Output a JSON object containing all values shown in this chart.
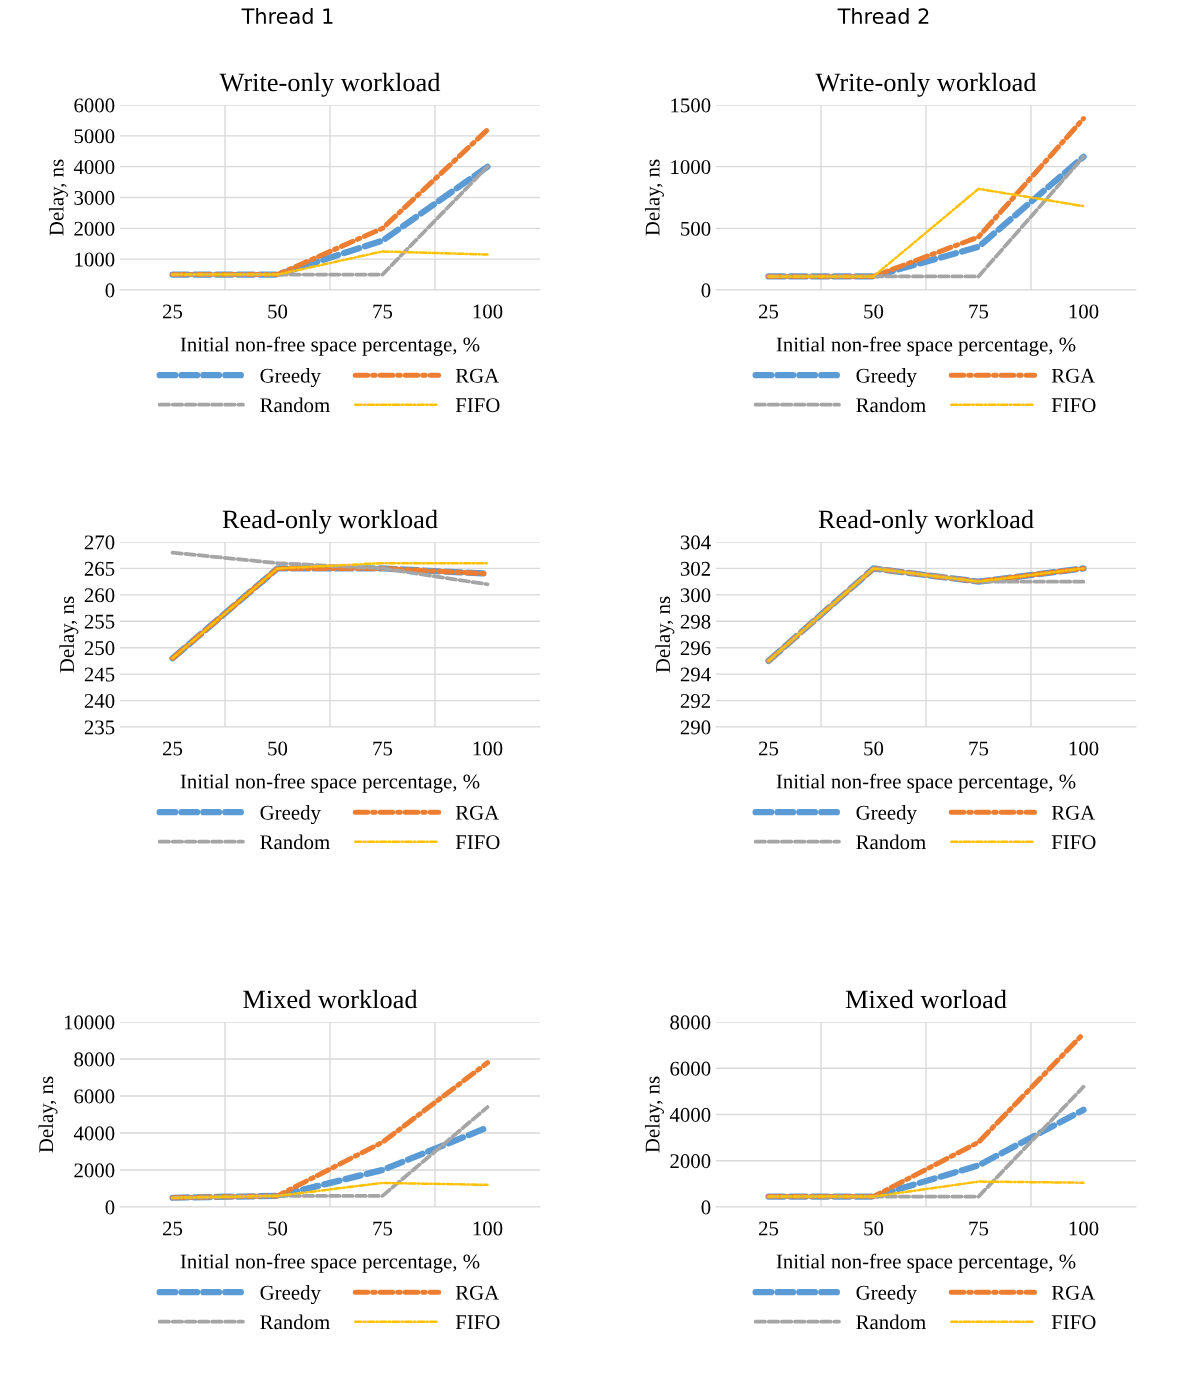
{
  "chart_data": [
    {
      "type": "line",
      "title": "Write-only workload",
      "annotations": [
        "Thread 1"
      ],
      "xlabel": "Initial non-free space percentage, %",
      "ylabel": "Delay, ns",
      "categories": [
        "25",
        "50",
        "75",
        "100"
      ],
      "ylim": [
        0,
        6000
      ],
      "yticks": [
        0,
        1000,
        2000,
        3000,
        4000,
        5000,
        6000
      ],
      "grid": true,
      "legend": "bottom",
      "marker": "none",
      "series": [
        {
          "name": "Greedy",
          "color": "#5b9bd5",
          "line_style": "dashed",
          "values": [
            500,
            500,
            1600,
            4000
          ]
        },
        {
          "name": "RGA",
          "color": "#ed7d31",
          "line_style": "dashdot",
          "values": [
            500,
            500,
            2000,
            5200
          ]
        },
        {
          "name": "Random",
          "color": "#a5a5a5",
          "line_style": "dashed",
          "values": [
            500,
            500,
            500,
            4000
          ]
        },
        {
          "name": "FIFO",
          "color": "#ffc000",
          "line_style": "dashdot",
          "values": [
            500,
            500,
            1250,
            1150
          ]
        }
      ]
    },
    {
      "type": "line",
      "title": "Write-only workload",
      "annotations": [
        "Thread 2"
      ],
      "xlabel": "Initial non-free space percentage, %",
      "ylabel": "Delay, ns",
      "categories": [
        "25",
        "50",
        "75",
        "100"
      ],
      "ylim": [
        0,
        1500
      ],
      "yticks": [
        0,
        500,
        1000,
        1500
      ],
      "grid": true,
      "legend": "bottom",
      "marker": "none",
      "series": [
        {
          "name": "Greedy",
          "color": "#5b9bd5",
          "line_style": "dashed",
          "values": [
            110,
            110,
            350,
            1080
          ]
        },
        {
          "name": "RGA",
          "color": "#ed7d31",
          "line_style": "dashdot",
          "values": [
            110,
            110,
            430,
            1390
          ]
        },
        {
          "name": "Random",
          "color": "#a5a5a5",
          "line_style": "dashed",
          "values": [
            110,
            110,
            110,
            1080
          ]
        },
        {
          "name": "FIFO",
          "color": "#ffc000",
          "line_style": "dashdot",
          "values": [
            110,
            110,
            820,
            680
          ]
        }
      ]
    },
    {
      "type": "line",
      "title": "Read-only workload",
      "xlabel": "Initial non-free space percentage, %",
      "ylabel": "Delay, ns",
      "categories": [
        "25",
        "50",
        "75",
        "100"
      ],
      "ylim": [
        235,
        270
      ],
      "yticks": [
        235,
        240,
        245,
        250,
        255,
        260,
        265,
        270
      ],
      "grid": true,
      "legend": "bottom",
      "marker": "none",
      "series": [
        {
          "name": "Greedy",
          "color": "#5b9bd5",
          "line_style": "dashed",
          "values": [
            248,
            265,
            265,
            264
          ]
        },
        {
          "name": "RGA",
          "color": "#ed7d31",
          "line_style": "dashdot",
          "values": [
            248,
            265,
            265,
            264
          ]
        },
        {
          "name": "Random",
          "color": "#a5a5a5",
          "line_style": "dashed",
          "values": [
            268,
            266,
            265,
            262
          ]
        },
        {
          "name": "FIFO",
          "color": "#ffc000",
          "line_style": "dashdot",
          "values": [
            248,
            265,
            266,
            266
          ]
        }
      ]
    },
    {
      "type": "line",
      "title": "Read-only workload",
      "xlabel": "Initial non-free space percentage, %",
      "ylabel": "Delay, ns",
      "categories": [
        "25",
        "50",
        "75",
        "100"
      ],
      "ylim": [
        290,
        304
      ],
      "yticks": [
        290,
        292,
        294,
        296,
        298,
        300,
        302,
        304
      ],
      "grid": true,
      "legend": "bottom",
      "marker": "none",
      "series": [
        {
          "name": "Greedy",
          "color": "#5b9bd5",
          "line_style": "dashed",
          "values": [
            295,
            302,
            301,
            302
          ]
        },
        {
          "name": "RGA",
          "color": "#ed7d31",
          "line_style": "dashdot",
          "values": [
            295,
            302,
            301,
            302
          ]
        },
        {
          "name": "Random",
          "color": "#a5a5a5",
          "line_style": "dashed",
          "values": [
            295,
            302,
            301,
            301
          ]
        },
        {
          "name": "FIFO",
          "color": "#ffc000",
          "line_style": "dashdot",
          "values": [
            295,
            302,
            301,
            302
          ]
        }
      ]
    },
    {
      "type": "line",
      "title": "Mixed workload",
      "xlabel": "Initial non-free space percentage, %",
      "ylabel": "Delay, ns",
      "categories": [
        "25",
        "50",
        "75",
        "100"
      ],
      "ylim": [
        0,
        10000
      ],
      "yticks": [
        0,
        2000,
        4000,
        6000,
        8000,
        10000
      ],
      "grid": true,
      "legend": "bottom",
      "marker": "none",
      "series": [
        {
          "name": "Greedy",
          "color": "#5b9bd5",
          "line_style": "dashed",
          "values": [
            500,
            600,
            2000,
            4300
          ]
        },
        {
          "name": "RGA",
          "color": "#ed7d31",
          "line_style": "dashdot",
          "values": [
            500,
            600,
            3500,
            7800
          ]
        },
        {
          "name": "Random",
          "color": "#a5a5a5",
          "line_style": "dashed",
          "values": [
            500,
            600,
            600,
            5400
          ]
        },
        {
          "name": "FIFO",
          "color": "#ffc000",
          "line_style": "dashdot",
          "values": [
            500,
            600,
            1300,
            1200
          ]
        }
      ]
    },
    {
      "type": "line",
      "title": "Mixed worload",
      "xlabel": "Initial non-free space percentage, %",
      "ylabel": "Delay, ns",
      "categories": [
        "25",
        "50",
        "75",
        "100"
      ],
      "ylim": [
        0,
        8000
      ],
      "yticks": [
        0,
        2000,
        4000,
        6000,
        8000
      ],
      "grid": true,
      "legend": "bottom",
      "marker": "none",
      "series": [
        {
          "name": "Greedy",
          "color": "#5b9bd5",
          "line_style": "dashed",
          "values": [
            450,
            450,
            1800,
            4200
          ]
        },
        {
          "name": "RGA",
          "color": "#ed7d31",
          "line_style": "dashdot",
          "values": [
            450,
            450,
            2800,
            7500
          ]
        },
        {
          "name": "Random",
          "color": "#a5a5a5",
          "line_style": "dashed",
          "values": [
            450,
            450,
            450,
            5200
          ]
        },
        {
          "name": "FIFO",
          "color": "#ffc000",
          "line_style": "dashdot",
          "values": [
            450,
            450,
            1100,
            1050
          ]
        }
      ]
    }
  ]
}
